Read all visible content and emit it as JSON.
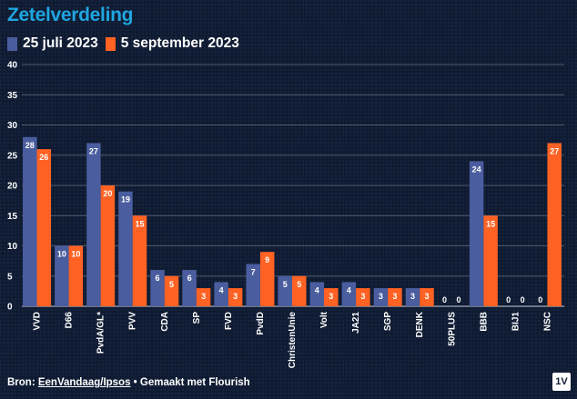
{
  "title": "Zetelverdeling",
  "legend": [
    {
      "label": "25 juli 2023",
      "color": "#4a5d9e"
    },
    {
      "label": "5 september 2023",
      "color": "#ff6223"
    }
  ],
  "footer": {
    "prefix": "Bron: ",
    "source_link": "EenVandaag/Ipsos",
    "suffix": " • Gemaakt met Flourish"
  },
  "logo_text": "1V",
  "chart_data": {
    "type": "bar",
    "title": "Zetelverdeling",
    "categories": [
      "VVD",
      "D66",
      "PvdA/GL*",
      "PVV",
      "CDA",
      "SP",
      "FVD",
      "PvdD",
      "ChristenUnie",
      "Volt",
      "JA21",
      "SGP",
      "DENK",
      "50PLUS",
      "BBB",
      "BIJ1",
      "NSC"
    ],
    "series": [
      {
        "name": "25 juli 2023",
        "color": "#4a5d9e",
        "values": [
          28,
          10,
          27,
          19,
          6,
          6,
          4,
          7,
          5,
          4,
          4,
          3,
          3,
          0,
          24,
          0,
          0
        ]
      },
      {
        "name": "5 september 2023",
        "color": "#ff6223",
        "values": [
          26,
          10,
          20,
          15,
          5,
          3,
          3,
          9,
          5,
          3,
          3,
          3,
          3,
          0,
          15,
          0,
          27
        ]
      }
    ],
    "ylim": [
      0,
      40
    ],
    "yticks": [
      0,
      5,
      10,
      15,
      20,
      25,
      30,
      35,
      40
    ],
    "grid": true,
    "legend_position": "top-left"
  }
}
